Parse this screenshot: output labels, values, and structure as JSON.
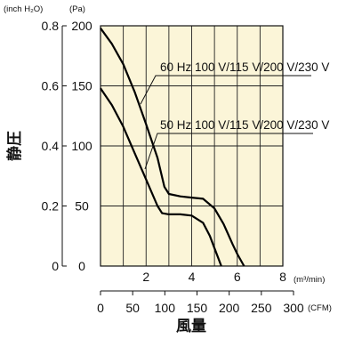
{
  "chart_data": {
    "type": "line",
    "unit_labels": {
      "left_outer": "(inch H₂O)",
      "left_inner": "(Pa)",
      "x_primary": "(m³/min)",
      "x_secondary": "(CFM)"
    },
    "ylabel": "静圧",
    "xlabel": "風量",
    "x_range": [
      0,
      8
    ],
    "y_range": [
      0,
      200
    ],
    "x_ticks": [
      "0",
      "2",
      "4",
      "6",
      "8"
    ],
    "x_secondary_ticks": [
      "0",
      "50",
      "100",
      "150",
      "200",
      "250",
      "300"
    ],
    "y_ticks": [
      "0",
      "50",
      "100",
      "150",
      "200"
    ],
    "y_secondary_ticks": [
      "0",
      "0.2",
      "0.4",
      "0.6",
      "0.8"
    ],
    "grid": true,
    "background": "#fbf5d8",
    "series": [
      {
        "name": "60 Hz 100 V/115 V/200 V/230 V",
        "color": "#000000",
        "x": [
          0,
          0.5,
          1.0,
          1.5,
          2.0,
          2.5,
          2.8,
          3.0,
          3.5,
          4.0,
          4.5,
          5.0,
          5.4,
          5.8,
          6.0,
          6.3
        ],
        "y": [
          198,
          185,
          168,
          145,
          118,
          90,
          66,
          60,
          58,
          57,
          56,
          48,
          35,
          18,
          10,
          0
        ]
      },
      {
        "name": "50 Hz 100 V/115 V/200 V/230 V",
        "color": "#000000",
        "x": [
          0,
          0.5,
          1.0,
          1.5,
          2.0,
          2.5,
          2.7,
          3.0,
          3.5,
          4.0,
          4.5,
          4.8,
          5.0,
          5.3
        ],
        "y": [
          148,
          134,
          116,
          94,
          72,
          50,
          44,
          43,
          43,
          42,
          36,
          25,
          15,
          0
        ]
      }
    ]
  }
}
